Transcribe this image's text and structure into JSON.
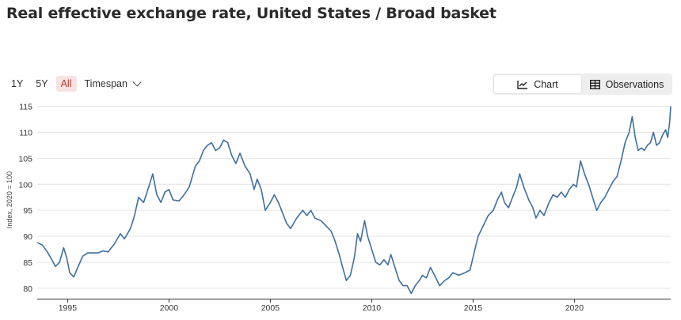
{
  "page": {
    "title": "Real effective exchange rate, United States / Broad basket"
  },
  "range_selector": {
    "options": [
      "1Y",
      "5Y",
      "All"
    ],
    "active": "All",
    "timespan_label": "Timespan"
  },
  "view_toggle": {
    "chart_label": "Chart",
    "observations_label": "Observations",
    "active": "Chart",
    "chart_icon": "line-chart-icon",
    "observations_icon": "table-icon"
  },
  "colors": {
    "line": "#3f6f9f",
    "active_range_bg": "#f7e3e3",
    "active_range_text": "#c0392b"
  },
  "chart_data": {
    "type": "line",
    "title": "",
    "xlabel": "",
    "ylabel": "Index, 2020 = 100",
    "xlim": [
      1993.5,
      2024.75
    ],
    "ylim": [
      78,
      116
    ],
    "x_ticks": [
      1995,
      2000,
      2005,
      2010,
      2015,
      2020
    ],
    "y_ticks": [
      80,
      85,
      90,
      95,
      100,
      105,
      110,
      115
    ],
    "grid": true,
    "legend": "none",
    "series": [
      {
        "values": [
          [
            1993.5,
            88.8
          ],
          [
            1993.75,
            88.3
          ],
          [
            1994.0,
            87.0
          ],
          [
            1994.25,
            85.3
          ],
          [
            1994.4,
            84.2
          ],
          [
            1994.6,
            85.0
          ],
          [
            1994.8,
            87.8
          ],
          [
            1994.95,
            86.0
          ],
          [
            1995.1,
            83.0
          ],
          [
            1995.3,
            82.2
          ],
          [
            1995.5,
            84.0
          ],
          [
            1995.75,
            86.2
          ],
          [
            1996.0,
            86.8
          ],
          [
            1996.5,
            86.8
          ],
          [
            1996.75,
            87.2
          ],
          [
            1997.0,
            87.0
          ],
          [
            1997.3,
            88.5
          ],
          [
            1997.6,
            90.5
          ],
          [
            1997.8,
            89.5
          ],
          [
            1998.1,
            91.5
          ],
          [
            1998.3,
            94.0
          ],
          [
            1998.5,
            97.5
          ],
          [
            1998.75,
            96.5
          ],
          [
            1999.0,
            99.5
          ],
          [
            1999.2,
            102.0
          ],
          [
            1999.4,
            98.0
          ],
          [
            1999.6,
            96.5
          ],
          [
            1999.8,
            98.5
          ],
          [
            2000.0,
            99.0
          ],
          [
            2000.2,
            97.0
          ],
          [
            2000.5,
            96.8
          ],
          [
            2000.75,
            98.0
          ],
          [
            2001.0,
            99.5
          ],
          [
            2001.3,
            103.5
          ],
          [
            2001.5,
            104.5
          ],
          [
            2001.7,
            106.5
          ],
          [
            2001.9,
            107.5
          ],
          [
            2002.1,
            108.0
          ],
          [
            2002.3,
            106.5
          ],
          [
            2002.5,
            107.0
          ],
          [
            2002.7,
            108.5
          ],
          [
            2002.9,
            108.0
          ],
          [
            2003.1,
            105.5
          ],
          [
            2003.3,
            104.0
          ],
          [
            2003.5,
            106.0
          ],
          [
            2003.75,
            103.5
          ],
          [
            2004.0,
            102.0
          ],
          [
            2004.2,
            99.0
          ],
          [
            2004.35,
            101.0
          ],
          [
            2004.55,
            99.0
          ],
          [
            2004.75,
            95.0
          ],
          [
            2005.0,
            96.5
          ],
          [
            2005.2,
            98.0
          ],
          [
            2005.4,
            96.5
          ],
          [
            2005.6,
            94.5
          ],
          [
            2005.8,
            92.5
          ],
          [
            2006.0,
            91.5
          ],
          [
            2006.3,
            93.5
          ],
          [
            2006.6,
            95.0
          ],
          [
            2006.8,
            94.0
          ],
          [
            2007.0,
            95.0
          ],
          [
            2007.2,
            93.5
          ],
          [
            2007.5,
            93.0
          ],
          [
            2007.75,
            92.0
          ],
          [
            2008.0,
            91.0
          ],
          [
            2008.2,
            89.0
          ],
          [
            2008.4,
            86.5
          ],
          [
            2008.6,
            83.5
          ],
          [
            2008.75,
            81.5
          ],
          [
            2008.95,
            82.5
          ],
          [
            2009.15,
            86.0
          ],
          [
            2009.3,
            90.5
          ],
          [
            2009.45,
            89.0
          ],
          [
            2009.65,
            93.0
          ],
          [
            2009.8,
            90.0
          ],
          [
            2010.0,
            87.5
          ],
          [
            2010.2,
            85.0
          ],
          [
            2010.4,
            84.5
          ],
          [
            2010.6,
            85.5
          ],
          [
            2010.8,
            84.5
          ],
          [
            2010.95,
            86.5
          ],
          [
            2011.15,
            84.0
          ],
          [
            2011.35,
            81.5
          ],
          [
            2011.55,
            80.5
          ],
          [
            2011.75,
            80.5
          ],
          [
            2011.95,
            79.0
          ],
          [
            2012.15,
            80.5
          ],
          [
            2012.35,
            81.5
          ],
          [
            2012.5,
            82.5
          ],
          [
            2012.7,
            82.0
          ],
          [
            2012.9,
            84.0
          ],
          [
            2013.1,
            82.5
          ],
          [
            2013.35,
            80.5
          ],
          [
            2013.6,
            81.5
          ],
          [
            2013.8,
            82.0
          ],
          [
            2014.0,
            83.0
          ],
          [
            2014.3,
            82.5
          ],
          [
            2014.6,
            83.0
          ],
          [
            2014.85,
            83.5
          ],
          [
            2015.0,
            86.0
          ],
          [
            2015.25,
            90.0
          ],
          [
            2015.5,
            92.0
          ],
          [
            2015.75,
            94.0
          ],
          [
            2016.0,
            95.0
          ],
          [
            2016.2,
            97.0
          ],
          [
            2016.4,
            98.5
          ],
          [
            2016.55,
            96.5
          ],
          [
            2016.75,
            95.5
          ],
          [
            2016.95,
            97.5
          ],
          [
            2017.15,
            99.5
          ],
          [
            2017.3,
            102.0
          ],
          [
            2017.5,
            99.5
          ],
          [
            2017.75,
            97.0
          ],
          [
            2017.95,
            95.5
          ],
          [
            2018.1,
            93.5
          ],
          [
            2018.3,
            95.0
          ],
          [
            2018.5,
            94.0
          ],
          [
            2018.75,
            96.5
          ],
          [
            2018.95,
            98.0
          ],
          [
            2019.15,
            97.5
          ],
          [
            2019.35,
            98.5
          ],
          [
            2019.55,
            97.5
          ],
          [
            2019.75,
            99.0
          ],
          [
            2019.95,
            100.0
          ],
          [
            2020.1,
            99.5
          ],
          [
            2020.3,
            104.5
          ],
          [
            2020.5,
            102.0
          ],
          [
            2020.7,
            100.0
          ],
          [
            2020.9,
            97.5
          ],
          [
            2021.1,
            95.0
          ],
          [
            2021.3,
            96.5
          ],
          [
            2021.5,
            97.5
          ],
          [
            2021.7,
            99.0
          ],
          [
            2021.9,
            100.5
          ],
          [
            2022.1,
            101.5
          ],
          [
            2022.3,
            104.5
          ],
          [
            2022.5,
            108.0
          ],
          [
            2022.7,
            110.0
          ],
          [
            2022.85,
            113.0
          ],
          [
            2023.0,
            109.0
          ],
          [
            2023.15,
            106.5
          ],
          [
            2023.3,
            107.0
          ],
          [
            2023.45,
            106.5
          ],
          [
            2023.6,
            107.5
          ],
          [
            2023.75,
            108.0
          ],
          [
            2023.9,
            110.0
          ],
          [
            2024.05,
            107.5
          ],
          [
            2024.2,
            108.0
          ],
          [
            2024.35,
            109.5
          ],
          [
            2024.5,
            110.5
          ],
          [
            2024.6,
            109.0
          ],
          [
            2024.7,
            112.0
          ],
          [
            2024.75,
            115.0
          ]
        ]
      }
    ]
  }
}
